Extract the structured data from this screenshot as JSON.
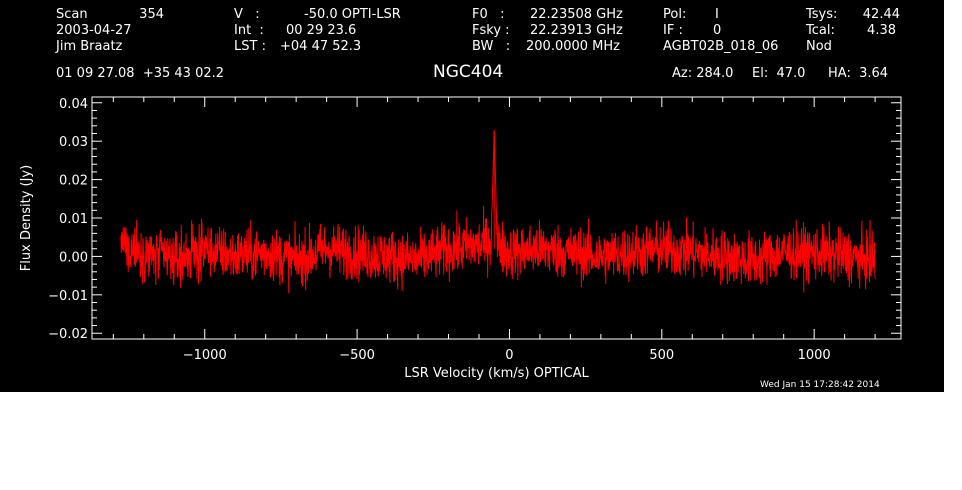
{
  "header": {
    "scan_label": "Scan",
    "scan_value": "354",
    "date": "2003-04-27",
    "observer": "Jim Braatz",
    "v_label": "V   :",
    "v_value": "-50.0 OPTI-LSR",
    "int_label": "Int  :",
    "int_value": "00 29 23.6",
    "lst_label": "LST :",
    "lst_value": "+04 47 52.3",
    "f0_label": "F0   :",
    "f0_value": "22.23508 GHz",
    "fsky_label": "Fsky :",
    "fsky_value": "22.23913 GHz",
    "bw_label": "BW   :",
    "bw_value": "200.0000 MHz",
    "pol_label": "Pol:",
    "pol_value": "I",
    "if_label": "IF :",
    "if_value": "0",
    "project": "AGBT02B_018_06",
    "tsys_label": "Tsys:",
    "tsys_value": "42.44",
    "tcal_label": "Tcal:",
    "tcal_value": "4.38",
    "mode": "Nod",
    "coords": "01 09 27.08  +35 43 02.2",
    "source": "NGC404",
    "az": "Az: 284.0",
    "el": "El:  47.0",
    "ha": "HA:  3.64"
  },
  "timestamp": "Wed Jan 15 17:28:42 2014",
  "colors": {
    "background": "#000000",
    "axes": "#ffffff",
    "trace": "#ff0000"
  },
  "chart_data": {
    "type": "line",
    "xlabel": "LSR Velocity (km/s) OPTICAL",
    "ylabel": "Flux Density (Jy)",
    "xlim": [
      -1370,
      1285
    ],
    "ylim": [
      -0.0215,
      0.0415
    ],
    "x_ticks": [
      -1000,
      -500,
      0,
      500,
      1000
    ],
    "x_tick_labels": [
      "−1000",
      "−500",
      "0",
      "500",
      "1000"
    ],
    "y_ticks": [
      -0.02,
      -0.01,
      0.0,
      0.01,
      0.02,
      0.03,
      0.04
    ],
    "y_tick_labels": [
      "−0.02",
      "−0.01",
      "0.00",
      "0.01",
      "0.02",
      "0.03",
      "0.04"
    ],
    "grid": false,
    "series": [
      {
        "x": [
          -1275,
          -1200,
          -1100,
          -1000,
          -900,
          -800,
          -700,
          -600,
          -500,
          -400,
          -300,
          -200,
          -100,
          -60,
          -50,
          -40,
          0,
          100,
          200,
          300,
          400,
          500,
          600,
          700,
          800,
          900,
          1000,
          1100,
          1200
        ],
        "y": [
          0.003,
          0.001,
          -0.001,
          0.002,
          0.0,
          0.001,
          -0.001,
          0.002,
          0.001,
          0.0,
          -0.001,
          0.002,
          0.003,
          0.004,
          0.033,
          0.003,
          0.001,
          0.002,
          0.001,
          0.0,
          0.001,
          0.002,
          0.001,
          0.0,
          -0.001,
          0.001,
          0.001,
          0.0,
          -0.001
        ],
        "noise_sigma": 0.0035,
        "x_range": [
          -1275,
          1200
        ]
      }
    ]
  }
}
